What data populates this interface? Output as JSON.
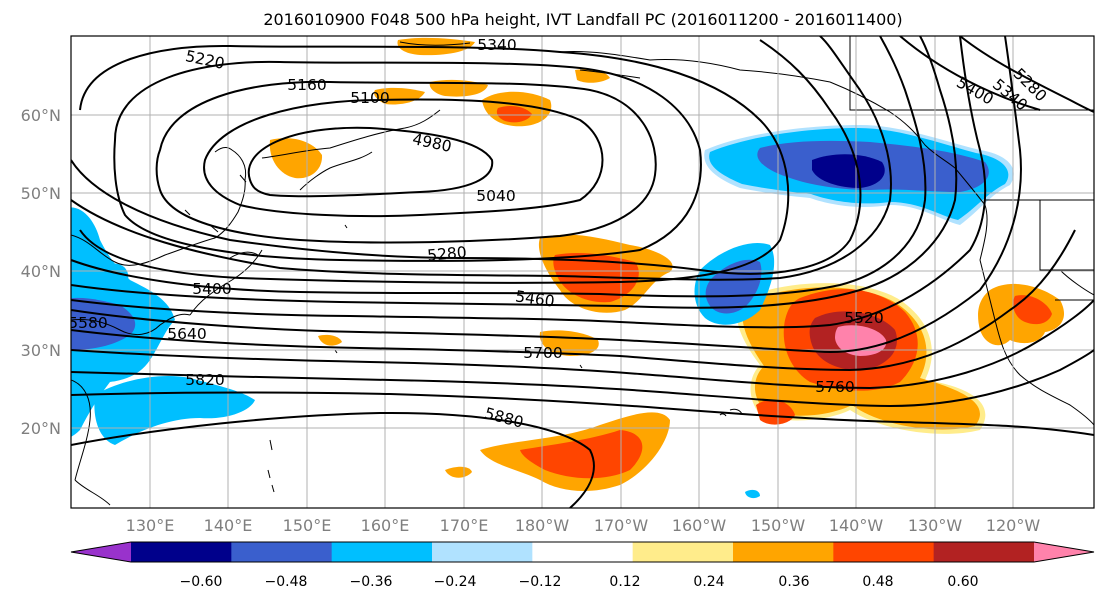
{
  "title": "2016010900 F048 500 hPa height, IVT Landfall PC (2016011200 - 2016011400)",
  "map": {
    "lon_labels": [
      "130°E",
      "140°E",
      "150°E",
      "160°E",
      "170°E",
      "180°W",
      "170°W",
      "160°W",
      "150°W",
      "140°W",
      "130°W",
      "120°W"
    ],
    "lat_labels": [
      "60°N",
      "50°N",
      "40°N",
      "30°N",
      "20°N"
    ],
    "contour_labels": [
      "5340",
      "5220",
      "5160",
      "5100",
      "4980",
      "5040",
      "5280",
      "5400",
      "5460",
      "5580",
      "5640",
      "5700",
      "5820",
      "5880",
      "5520",
      "5760",
      "5400",
      "5340",
      "5280"
    ]
  },
  "colorbar": {
    "tick_labels": [
      "−0.60",
      "−0.48",
      "−0.36",
      "−0.24",
      "−0.12",
      "0.12",
      "0.24",
      "0.36",
      "0.48",
      "0.60"
    ],
    "colors": [
      "#9932cc",
      "#00008b",
      "#3a5fcd",
      "#00bfff",
      "#b0e2ff",
      "#ffffff",
      "#ffec8b",
      "#ffa500",
      "#ff4500",
      "#b22222",
      "#ff82ab"
    ]
  },
  "colors": {
    "pos_light": "#ffec8b",
    "pos_1": "#ffa500",
    "pos_2": "#ff4500",
    "pos_3": "#b22222",
    "pos_4": "#ff82ab",
    "neg_light": "#b0e2ff",
    "neg_1": "#00bfff",
    "neg_2": "#3a5fcd",
    "neg_3": "#00008b"
  }
}
